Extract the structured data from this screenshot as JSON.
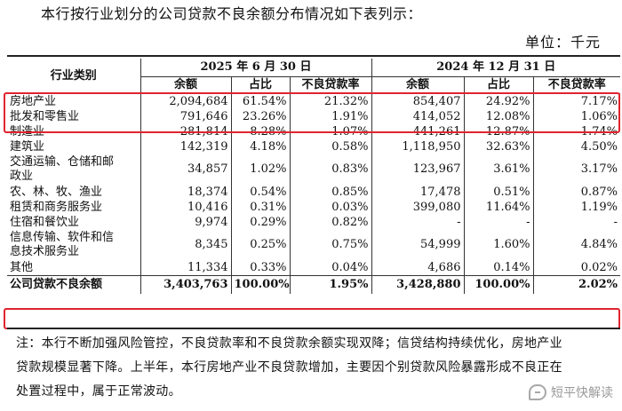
{
  "intro": "本行按行业划分的公司贷款不良余额分布情况如下表列示：",
  "unit": "单位：千元",
  "table": {
    "cat_header": "行业类别",
    "group1": "2025 年 6 月 30 日",
    "group2": "2024 年 12 月 31 日",
    "sub_headers": [
      "余额",
      "占比",
      "不良贷款率",
      "余额",
      "占比",
      "不良贷款率"
    ],
    "rows": [
      {
        "name": "房地产业",
        "cells": [
          "2,094,684",
          "61.54%",
          "21.32%",
          "854,407",
          "24.92%",
          "7.17%"
        ]
      },
      {
        "name": "批发和零售业",
        "cells": [
          "791,646",
          "23.26%",
          "1.91%",
          "414,052",
          "12.08%",
          "1.06%"
        ]
      },
      {
        "name": "制造业",
        "cells": [
          "281,814",
          "8.28%",
          "1.07%",
          "441,261",
          "12.87%",
          "1.74%"
        ]
      },
      {
        "name": "建筑业",
        "cells": [
          "142,319",
          "4.18%",
          "0.58%",
          "1,118,950",
          "32.63%",
          "4.50%"
        ]
      },
      {
        "name1": "交通运输、仓储和邮",
        "name2": "政业",
        "cells": [
          "34,857",
          "1.02%",
          "0.83%",
          "123,967",
          "3.61%",
          "3.17%"
        ]
      },
      {
        "name": "农、林、牧、渔业",
        "cells": [
          "18,374",
          "0.54%",
          "0.85%",
          "17,478",
          "0.51%",
          "0.87%"
        ]
      },
      {
        "name": "租赁和商务服务业",
        "cells": [
          "10,416",
          "0.31%",
          "0.03%",
          "399,080",
          "11.64%",
          "1.19%"
        ]
      },
      {
        "name": "住宿和餐饮业",
        "cells": [
          "9,974",
          "0.29%",
          "0.82%",
          "-",
          "-",
          "-"
        ]
      },
      {
        "name1": "信息传输、软件和信",
        "name2": "息技术服务业",
        "cells": [
          "8,345",
          "0.25%",
          "0.75%",
          "54,999",
          "1.60%",
          "4.84%"
        ]
      },
      {
        "name": "其他",
        "cells": [
          "11,334",
          "0.33%",
          "0.04%",
          "4,686",
          "0.14%",
          "0.02%"
        ]
      }
    ],
    "total": {
      "name": "公司贷款不良余额",
      "cells": [
        "3,403,763",
        "100.00%",
        "1.95%",
        "3,428,880",
        "100.00%",
        "2.02%"
      ]
    }
  },
  "note_line1": "注：本行不断加强风险管控，不良贷款率和不良贷款余额实现双降；信贷结构持续优化，房地产业",
  "note_line2": "贷款规模显著下降。上半年，本行房地产业不良贷款增加，主要因个别贷款风险暴露形成不良正在",
  "note_line3": "处置过程中，属于正常波动。",
  "watermark": "短平快解读",
  "colors": {
    "highlight": "#e0242e"
  }
}
